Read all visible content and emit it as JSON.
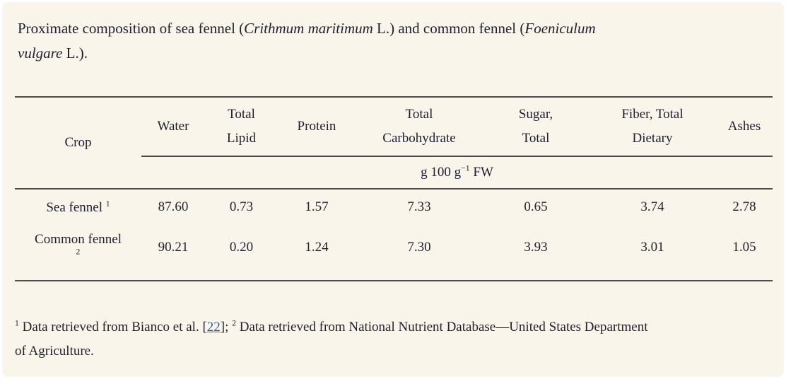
{
  "colors": {
    "panel_bg": "#f9f5eb",
    "text": "#22222f",
    "rule": "#4d4d4d",
    "link_blue": "#3a5fa8"
  },
  "caption": {
    "segments": [
      {
        "text": "Proximate composition of sea fennel ("
      },
      {
        "text": "Crithmum maritimum",
        "italic": true
      },
      {
        "text": " L.) and common fennel ("
      },
      {
        "text": "Foeniculum",
        "italic": true
      },
      {
        "br": true
      },
      {
        "text": "vulgare",
        "italic": true
      },
      {
        "text": " L.)."
      }
    ]
  },
  "table": {
    "unit_segments": [
      {
        "text": "g 100 g"
      },
      {
        "text": "−1",
        "sup": true
      },
      {
        "text": " FW"
      }
    ],
    "headers": {
      "crop": [
        {
          "text": "Crop"
        }
      ],
      "water": [
        {
          "text": "Water"
        }
      ],
      "total_lipid": [
        {
          "text": "Total"
        },
        {
          "br": true
        },
        {
          "text": "Lipid"
        }
      ],
      "protein": [
        {
          "text": "Protein"
        }
      ],
      "total_carbohydrate": [
        {
          "text": "Total"
        },
        {
          "br": true
        },
        {
          "text": "Carbohydrate"
        }
      ],
      "sugar_total": [
        {
          "text": "Sugar,"
        },
        {
          "br": true
        },
        {
          "text": "Total"
        }
      ],
      "fiber_total_dietary": [
        {
          "text": "Fiber, Total"
        },
        {
          "br": true
        },
        {
          "text": "Dietary"
        }
      ],
      "ashes": [
        {
          "text": "Ashes"
        }
      ]
    },
    "rows": [
      {
        "crop_segments": [
          {
            "text": "Sea fennel "
          },
          {
            "text": "1",
            "sup": true
          }
        ],
        "values": [
          "87.60",
          "0.73",
          "1.57",
          "7.33",
          "0.65",
          "3.74",
          "2.78"
        ]
      },
      {
        "crop_segments": [
          {
            "text": "Common fennel"
          },
          {
            "br": true
          },
          {
            "text": "2",
            "sup": true
          }
        ],
        "values": [
          "90.21",
          "0.20",
          "1.24",
          "7.30",
          "3.93",
          "3.01",
          "1.05"
        ]
      }
    ]
  },
  "footnote": {
    "segments": [
      {
        "text": "1",
        "sup": true
      },
      {
        "text": " Data retrieved from Bianco et al. ["
      },
      {
        "text": "22",
        "link": true
      },
      {
        "text": "]; "
      },
      {
        "text": "2",
        "sup": true
      },
      {
        "text": " Data retrieved from National Nutrient Database—United States Department"
      },
      {
        "br": true
      },
      {
        "text": "of Agriculture."
      }
    ]
  }
}
